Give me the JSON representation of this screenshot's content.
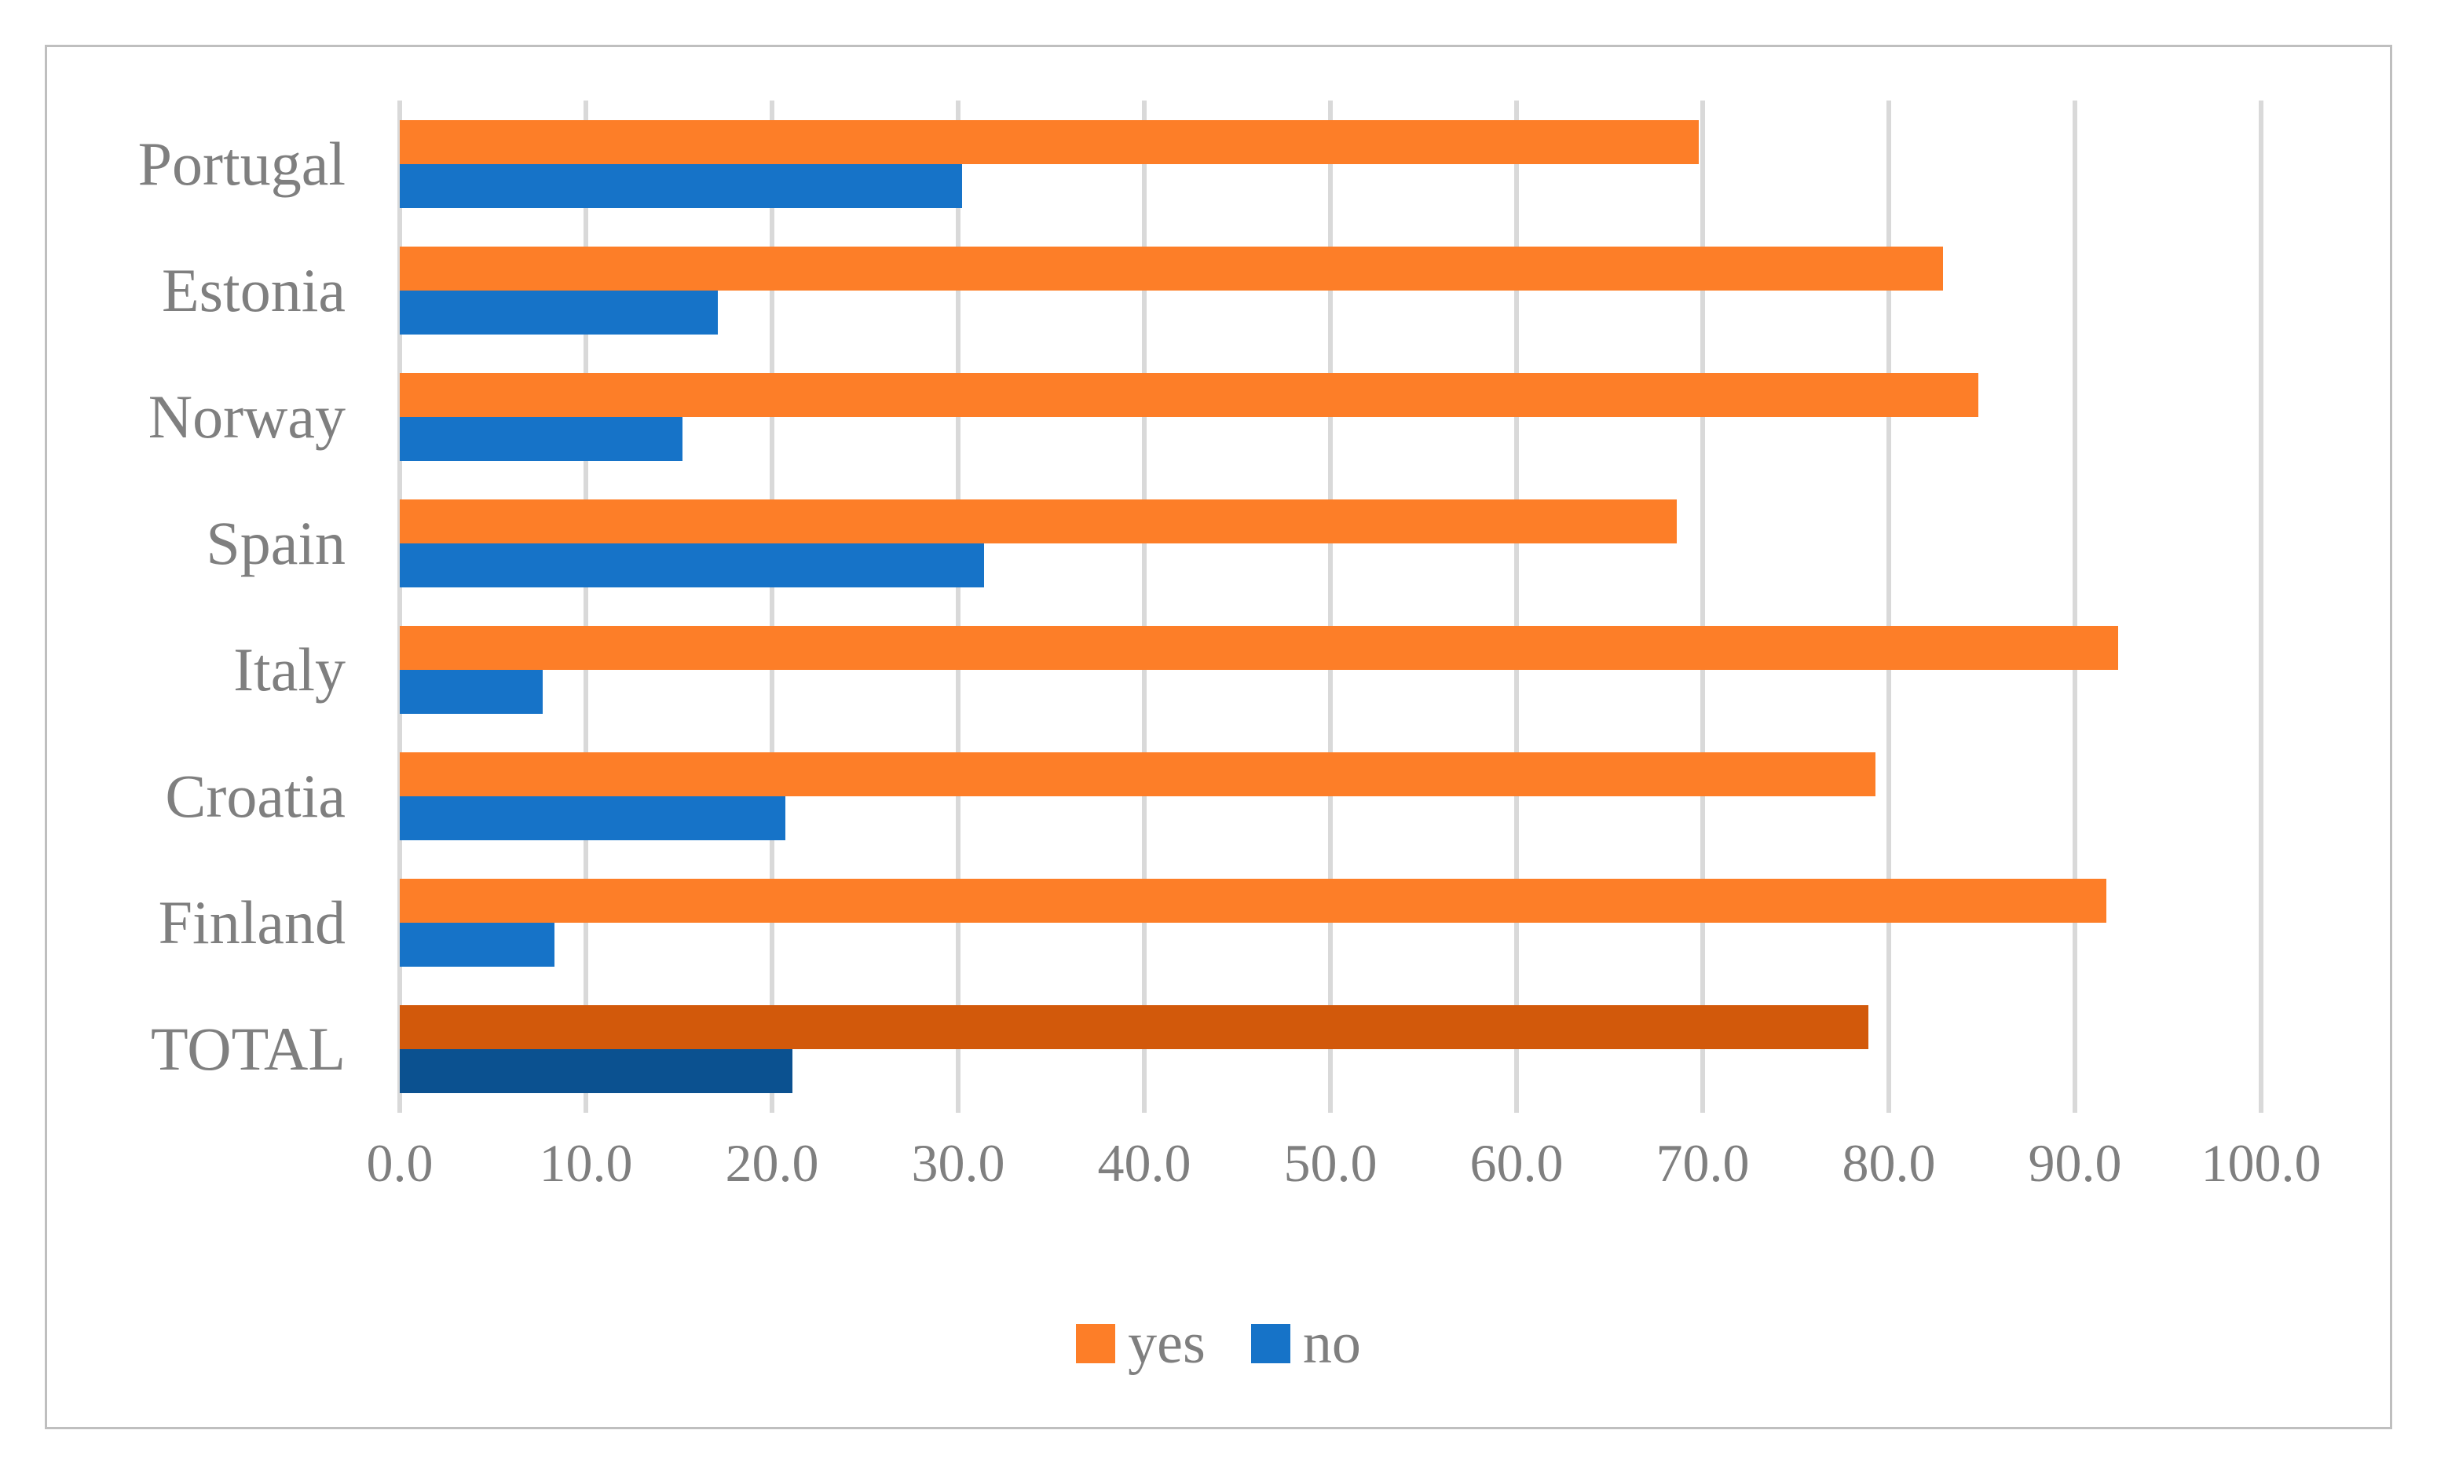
{
  "figure": {
    "background": "#ffffff",
    "border_color": "#bfbfbf",
    "text_color": "#7f7f7f",
    "gridline_color": "#d9d9d9"
  },
  "legend": {
    "items": [
      {
        "label": "yes",
        "color": "#fd7e28"
      },
      {
        "label": "no",
        "color": "#1673c8"
      }
    ]
  },
  "chart_data": {
    "type": "bar",
    "orientation": "horizontal",
    "title": "",
    "xlabel": "",
    "ylabel": "",
    "categories": [
      "Portugal",
      "Estonia",
      "Norway",
      "Spain",
      "Italy",
      "Croatia",
      "Finland",
      "TOTAL"
    ],
    "series": [
      {
        "name": "yes",
        "color": "#fd7e28",
        "total_color": "#d2590b",
        "values": [
          69.8,
          82.9,
          84.8,
          68.6,
          92.3,
          79.3,
          91.7,
          78.9
        ]
      },
      {
        "name": "no",
        "color": "#1673c8",
        "total_color": "#0b5190",
        "values": [
          30.2,
          17.1,
          15.2,
          31.4,
          7.7,
          20.7,
          8.3,
          21.1
        ]
      }
    ],
    "total_category": "TOTAL",
    "xlim": [
      0,
      100
    ],
    "xticks": [
      0,
      10,
      20,
      30,
      40,
      50,
      60,
      70,
      80,
      90,
      100
    ],
    "xtick_labels": [
      "0.0",
      "10.0",
      "20.0",
      "30.0",
      "40.0",
      "50.0",
      "60.0",
      "70.0",
      "80.0",
      "90.0",
      "100.0"
    ],
    "grid": true,
    "legend_position": "bottom"
  }
}
